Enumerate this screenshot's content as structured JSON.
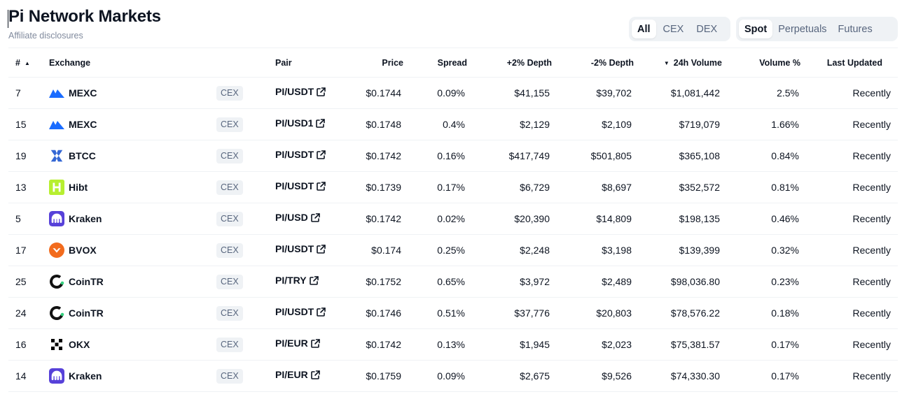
{
  "page": {
    "title": "Pi Network Markets",
    "subtitle": "Affiliate disclosures"
  },
  "filters": {
    "type": [
      "All",
      "CEX",
      "DEX"
    ],
    "type_active": "All",
    "market": [
      "Spot",
      "Perpetuals",
      "Futures"
    ],
    "market_active": "Spot"
  },
  "colors": {
    "accent": "#0d1421",
    "muted": "#58667e",
    "divider": "#eff2f5"
  },
  "table": {
    "headers": {
      "rank": "#",
      "exchange": "Exchange",
      "pair": "Pair",
      "price": "Price",
      "spread": "Spread",
      "plus_depth": "+2% Depth",
      "minus_depth": "-2% Depth",
      "volume": "24h Volume",
      "volume_pct": "Volume %",
      "updated": "Last Updated"
    },
    "rows": [
      {
        "rank": "7",
        "exchange": "MEXC",
        "logo": "mexc-logo-icon",
        "type": "CEX",
        "pair": "PI/USDT",
        "price": "$0.1744",
        "spread": "0.09%",
        "plus_depth": "$41,155",
        "minus_depth": "$39,702",
        "volume": "$1,081,442",
        "volume_pct": "2.5%",
        "updated": "Recently"
      },
      {
        "rank": "15",
        "exchange": "MEXC",
        "logo": "mexc-logo-icon",
        "type": "CEX",
        "pair": "PI/USD1",
        "price": "$0.1748",
        "spread": "0.4%",
        "plus_depth": "$2,129",
        "minus_depth": "$2,109",
        "volume": "$719,079",
        "volume_pct": "1.66%",
        "updated": "Recently"
      },
      {
        "rank": "19",
        "exchange": "BTCC",
        "logo": "btcc-logo-icon",
        "type": "CEX",
        "pair": "PI/USDT",
        "price": "$0.1742",
        "spread": "0.16%",
        "plus_depth": "$417,749",
        "minus_depth": "$501,805",
        "volume": "$365,108",
        "volume_pct": "0.84%",
        "updated": "Recently"
      },
      {
        "rank": "13",
        "exchange": "Hibt",
        "logo": "hibt-logo-icon",
        "type": "CEX",
        "pair": "PI/USDT",
        "price": "$0.1739",
        "spread": "0.17%",
        "plus_depth": "$6,729",
        "minus_depth": "$8,697",
        "volume": "$352,572",
        "volume_pct": "0.81%",
        "updated": "Recently"
      },
      {
        "rank": "5",
        "exchange": "Kraken",
        "logo": "kraken-logo-icon",
        "type": "CEX",
        "pair": "PI/USD",
        "price": "$0.1742",
        "spread": "0.02%",
        "plus_depth": "$20,390",
        "minus_depth": "$14,809",
        "volume": "$198,135",
        "volume_pct": "0.46%",
        "updated": "Recently"
      },
      {
        "rank": "17",
        "exchange": "BVOX",
        "logo": "bvox-logo-icon",
        "type": "CEX",
        "pair": "PI/USDT",
        "price": "$0.174",
        "spread": "0.25%",
        "plus_depth": "$2,248",
        "minus_depth": "$3,198",
        "volume": "$139,399",
        "volume_pct": "0.32%",
        "updated": "Recently"
      },
      {
        "rank": "25",
        "exchange": "CoinTR",
        "logo": "cointr-logo-icon",
        "type": "CEX",
        "pair": "PI/TRY",
        "price": "$0.1752",
        "spread": "0.65%",
        "plus_depth": "$3,972",
        "minus_depth": "$2,489",
        "volume": "$98,036.80",
        "volume_pct": "0.23%",
        "updated": "Recently"
      },
      {
        "rank": "24",
        "exchange": "CoinTR",
        "logo": "cointr-logo-icon",
        "type": "CEX",
        "pair": "PI/USDT",
        "price": "$0.1746",
        "spread": "0.51%",
        "plus_depth": "$37,776",
        "minus_depth": "$20,803",
        "volume": "$78,576.22",
        "volume_pct": "0.18%",
        "updated": "Recently"
      },
      {
        "rank": "16",
        "exchange": "OKX",
        "logo": "okx-logo-icon",
        "type": "CEX",
        "pair": "PI/EUR",
        "price": "$0.1742",
        "spread": "0.13%",
        "plus_depth": "$1,945",
        "minus_depth": "$2,023",
        "volume": "$75,381.57",
        "volume_pct": "0.17%",
        "updated": "Recently"
      },
      {
        "rank": "14",
        "exchange": "Kraken",
        "logo": "kraken-logo-icon",
        "type": "CEX",
        "pair": "PI/EUR",
        "price": "$0.1759",
        "spread": "0.09%",
        "plus_depth": "$2,675",
        "minus_depth": "$9,526",
        "volume": "$74,330.30",
        "volume_pct": "0.17%",
        "updated": "Recently"
      }
    ]
  }
}
